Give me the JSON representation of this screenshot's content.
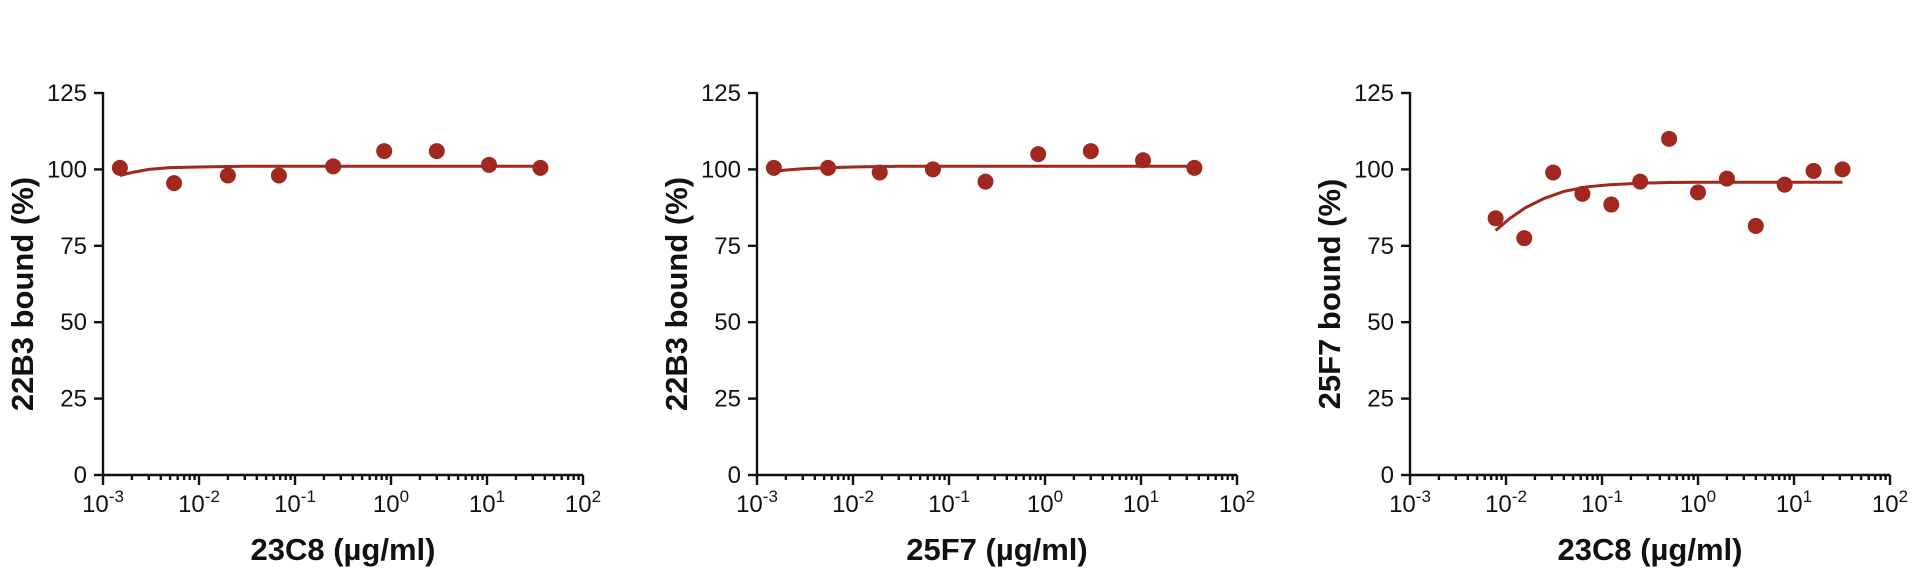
{
  "marker_color": "#a0281e",
  "chart_data": [
    {
      "type": "scatter",
      "xlabel": "23C8 (µg/ml)",
      "ylabel": "22B3 bound (%)",
      "x_scale": "log",
      "xlim": [
        0.001,
        100
      ],
      "ylim": [
        0,
        125
      ],
      "x_ticks": [
        {
          "base": "10",
          "exp": "-3"
        },
        {
          "base": "10",
          "exp": "-2"
        },
        {
          "base": "10",
          "exp": "-1"
        },
        {
          "base": "10",
          "exp": "0"
        },
        {
          "base": "10",
          "exp": "1"
        },
        {
          "base": "10",
          "exp": "2"
        }
      ],
      "y_ticks": [
        "0",
        "25",
        "50",
        "75",
        "100",
        "125"
      ],
      "grid": false,
      "series": [
        {
          "x": [
            0.0015,
            0.0055,
            0.02,
            0.068,
            0.25,
            0.85,
            3.0,
            10.5,
            36
          ],
          "y": [
            100.5,
            95.5,
            98,
            98,
            101,
            106,
            106,
            101.5,
            100.5
          ]
        }
      ],
      "fit": {
        "x": [
          0.0015,
          0.002,
          0.003,
          0.005,
          0.01,
          0.03,
          0.1,
          1,
          10,
          36
        ],
        "y": [
          98,
          99,
          100,
          100.6,
          100.8,
          101,
          101,
          101,
          101,
          101
        ]
      }
    },
    {
      "type": "scatter",
      "xlabel": "25F7 (µg/ml)",
      "ylabel": "22B3 bound (%)",
      "x_scale": "log",
      "xlim": [
        0.001,
        100
      ],
      "ylim": [
        0,
        125
      ],
      "x_ticks": [
        {
          "base": "10",
          "exp": "-3"
        },
        {
          "base": "10",
          "exp": "-2"
        },
        {
          "base": "10",
          "exp": "-1"
        },
        {
          "base": "10",
          "exp": "0"
        },
        {
          "base": "10",
          "exp": "1"
        },
        {
          "base": "10",
          "exp": "2"
        }
      ],
      "y_ticks": [
        "0",
        "25",
        "50",
        "75",
        "100",
        "125"
      ],
      "grid": false,
      "series": [
        {
          "x": [
            0.0015,
            0.0055,
            0.019,
            0.068,
            0.24,
            0.85,
            3.0,
            10.5,
            36
          ],
          "y": [
            100.5,
            100.5,
            99,
            100,
            96,
            105,
            106,
            103,
            100.5
          ]
        }
      ],
      "fit": {
        "x": [
          0.0015,
          0.002,
          0.003,
          0.005,
          0.01,
          0.03,
          0.1,
          1,
          10,
          36
        ],
        "y": [
          99.3,
          99.8,
          100.2,
          100.5,
          100.8,
          101,
          101,
          101,
          101,
          101
        ]
      }
    },
    {
      "type": "scatter",
      "xlabel": "23C8 (µg/ml)",
      "ylabel": "25F7 bound (%)",
      "x_scale": "log",
      "xlim": [
        0.001,
        100
      ],
      "ylim": [
        0,
        125
      ],
      "x_ticks": [
        {
          "base": "10",
          "exp": "-3"
        },
        {
          "base": "10",
          "exp": "-2"
        },
        {
          "base": "10",
          "exp": "-1"
        },
        {
          "base": "10",
          "exp": "0"
        },
        {
          "base": "10",
          "exp": "1"
        },
        {
          "base": "10",
          "exp": "2"
        }
      ],
      "y_ticks": [
        "0",
        "25",
        "50",
        "75",
        "100",
        "125"
      ],
      "grid": false,
      "series": [
        {
          "x": [
            0.0078,
            0.0155,
            0.031,
            0.0625,
            0.125,
            0.25,
            0.5,
            1.0,
            2.0,
            4.0,
            8.0,
            16,
            32
          ],
          "y": [
            84,
            77.5,
            99,
            92,
            88.5,
            96,
            110,
            92.5,
            97,
            81.5,
            95,
            99.5,
            100
          ]
        }
      ],
      "fit": {
        "x": [
          0.0078,
          0.011,
          0.016,
          0.025,
          0.04,
          0.07,
          0.12,
          0.25,
          0.5,
          1,
          4,
          32
        ],
        "y": [
          80,
          84,
          87.5,
          90.5,
          92.8,
          94.3,
          95,
          95.5,
          95.7,
          95.8,
          95.8,
          95.8
        ]
      }
    }
  ]
}
